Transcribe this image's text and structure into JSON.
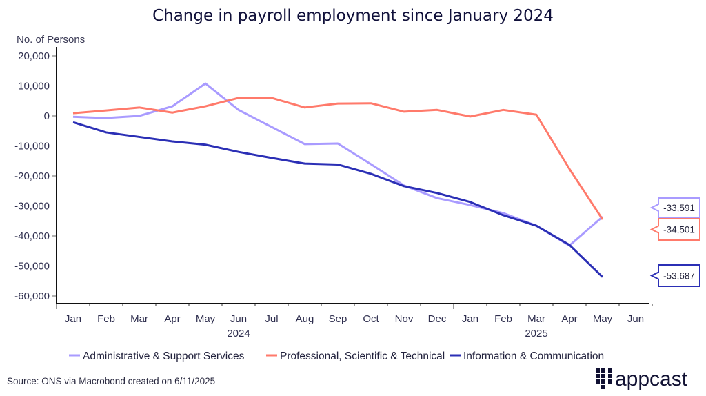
{
  "chart_data": {
    "type": "line",
    "title": "Change in payroll employment since January 2024",
    "ylabel": "No. of Persons",
    "xlabel": "",
    "ylim": [
      -62000,
      22000
    ],
    "yticks": [
      20000,
      10000,
      0,
      -10000,
      -20000,
      -30000,
      -40000,
      -50000,
      -60000
    ],
    "ytick_labels": [
      "20,000",
      "10,000",
      "0",
      "-10,000",
      "-20,000",
      "-30,000",
      "-40,000",
      "-50,000",
      "-60,000"
    ],
    "x": [
      "Jan",
      "Feb",
      "Mar",
      "Apr",
      "May",
      "Jun",
      "Jul",
      "Aug",
      "Sep",
      "Oct",
      "Nov",
      "Dec",
      "Jan",
      "Feb",
      "Mar",
      "Apr",
      "May",
      "Jun"
    ],
    "year_labels": [
      {
        "label": "2024",
        "at_index": 5.5
      },
      {
        "label": "2025",
        "at_index": 14.5
      }
    ],
    "grid": false,
    "legend_position": "bottom",
    "series": [
      {
        "name": "Administrative & Support Services",
        "color": "#a99bff",
        "values": [
          -300,
          -700,
          0,
          3200,
          10800,
          2000,
          -3700,
          -9400,
          -9200,
          -16100,
          -23200,
          -27400,
          -29700,
          -32400,
          -36600,
          -43200,
          -33591
        ],
        "last_label": "-33,591"
      },
      {
        "name": "Professional, Scientific & Technical",
        "color": "#ff7a6b",
        "values": [
          900,
          1800,
          2800,
          1100,
          3200,
          6000,
          6000,
          2800,
          4100,
          4200,
          1400,
          2000,
          -200,
          2000,
          400,
          -17700,
          -34501
        ],
        "last_label": "-34,501"
      },
      {
        "name": "Information & Communication",
        "color": "#2b2fb5",
        "values": [
          -2100,
          -5500,
          -7000,
          -8500,
          -9600,
          -12000,
          -14000,
          -15900,
          -16200,
          -19300,
          -23400,
          -25700,
          -28700,
          -33100,
          -36600,
          -43000,
          -53687
        ],
        "last_label": "-53,687"
      }
    ],
    "source": "Source: ONS via Macrobond created on 6/11/2025",
    "brand": "appcast"
  }
}
